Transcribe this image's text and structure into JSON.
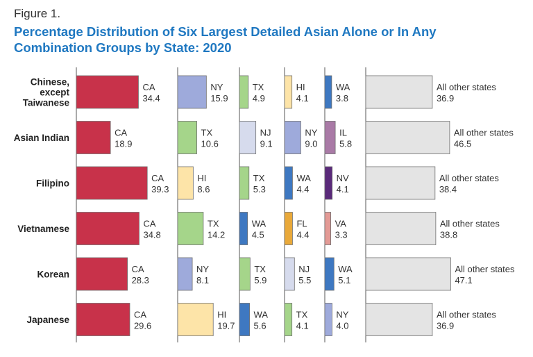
{
  "figure_label": "Figure 1.",
  "title": "Percentage Distribution of Six Largest Detailed Asian Alone or In Any Combination Groups by State: 2020",
  "colors": {
    "title": "#1f78c1",
    "axis": "#555555",
    "bar_outline": "#6e6e6e",
    "CA": "#c8324a",
    "NY": "#9eaadb",
    "TX": "#a5d58a",
    "HI": "#fde4a8",
    "WA": "#3e78c1",
    "NJ": "#d6dbed",
    "IL": "#a97aa6",
    "NV": "#5a2a7a",
    "FL": "#e9a93a",
    "VA": "#e39a95",
    "All other states": "#e4e4e4"
  },
  "chart_data": {
    "type": "bar",
    "title": "Percentage Distribution of Six Largest Detailed Asian Alone or In Any Combination Groups by State: 2020",
    "groups": [
      {
        "label_lines": [
          "Chinese,",
          "except",
          "Taiwanese"
        ],
        "states": [
          {
            "state": "CA",
            "value": 34.4
          },
          {
            "state": "NY",
            "value": 15.9
          },
          {
            "state": "TX",
            "value": 4.9
          },
          {
            "state": "HI",
            "value": 4.1
          },
          {
            "state": "WA",
            "value": 3.8
          },
          {
            "state": "All other states",
            "value": 36.9
          }
        ]
      },
      {
        "label_lines": [
          "Asian Indian"
        ],
        "states": [
          {
            "state": "CA",
            "value": 18.9
          },
          {
            "state": "TX",
            "value": 10.6
          },
          {
            "state": "NJ",
            "value": 9.1
          },
          {
            "state": "NY",
            "value": 9.0
          },
          {
            "state": "IL",
            "value": 5.8
          },
          {
            "state": "All other states",
            "value": 46.5
          }
        ]
      },
      {
        "label_lines": [
          "Filipino"
        ],
        "states": [
          {
            "state": "CA",
            "value": 39.3
          },
          {
            "state": "HI",
            "value": 8.6
          },
          {
            "state": "TX",
            "value": 5.3
          },
          {
            "state": "WA",
            "value": 4.4
          },
          {
            "state": "NV",
            "value": 4.1
          },
          {
            "state": "All other states",
            "value": 38.4
          }
        ]
      },
      {
        "label_lines": [
          "Vietnamese"
        ],
        "states": [
          {
            "state": "CA",
            "value": 34.8
          },
          {
            "state": "TX",
            "value": 14.2
          },
          {
            "state": "WA",
            "value": 4.5
          },
          {
            "state": "FL",
            "value": 4.4
          },
          {
            "state": "VA",
            "value": 3.3
          },
          {
            "state": "All other states",
            "value": 38.8
          }
        ]
      },
      {
        "label_lines": [
          "Korean"
        ],
        "states": [
          {
            "state": "CA",
            "value": 28.3
          },
          {
            "state": "NY",
            "value": 8.1
          },
          {
            "state": "TX",
            "value": 5.9
          },
          {
            "state": "NJ",
            "value": 5.5
          },
          {
            "state": "WA",
            "value": 5.1
          },
          {
            "state": "All other states",
            "value": 47.1
          }
        ]
      },
      {
        "label_lines": [
          "Japanese"
        ],
        "states": [
          {
            "state": "CA",
            "value": 29.6
          },
          {
            "state": "HI",
            "value": 19.7
          },
          {
            "state": "WA",
            "value": 5.6
          },
          {
            "state": "TX",
            "value": 4.1
          },
          {
            "state": "NY",
            "value": 4.0
          },
          {
            "state": "All other states",
            "value": 36.9
          }
        ]
      }
    ]
  }
}
